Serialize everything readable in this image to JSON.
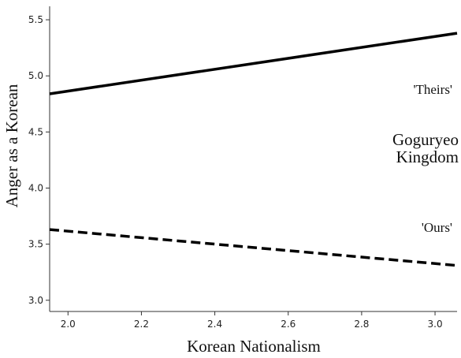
{
  "chart_data": {
    "type": "line",
    "title": "",
    "xlabel": "Korean Nationalism",
    "ylabel": "Anger as a Korean",
    "xlim": [
      1.95,
      3.06
    ],
    "ylim": [
      2.9,
      5.62
    ],
    "x_ticks": [
      "2.0",
      "2.2",
      "2.4",
      "2.6",
      "2.8",
      "3.0"
    ],
    "y_ticks": [
      "3.0",
      "3.5",
      "4.0",
      "4.5",
      "5.0",
      "5.5"
    ],
    "grid": false,
    "series": [
      {
        "name": "'Theirs'",
        "style": "solid",
        "color": "#000000",
        "x": [
          1.95,
          3.06
        ],
        "y": [
          4.84,
          5.38
        ]
      },
      {
        "name": "'Ours'",
        "style": "dashed",
        "color": "#000000",
        "x": [
          1.95,
          3.06
        ],
        "y": [
          3.63,
          3.31
        ]
      }
    ],
    "annotations": {
      "theirs": "'Theirs'",
      "ours": "'Ours'",
      "group_line1": "Goguryeo",
      "group_line2": "Kingdom"
    }
  }
}
